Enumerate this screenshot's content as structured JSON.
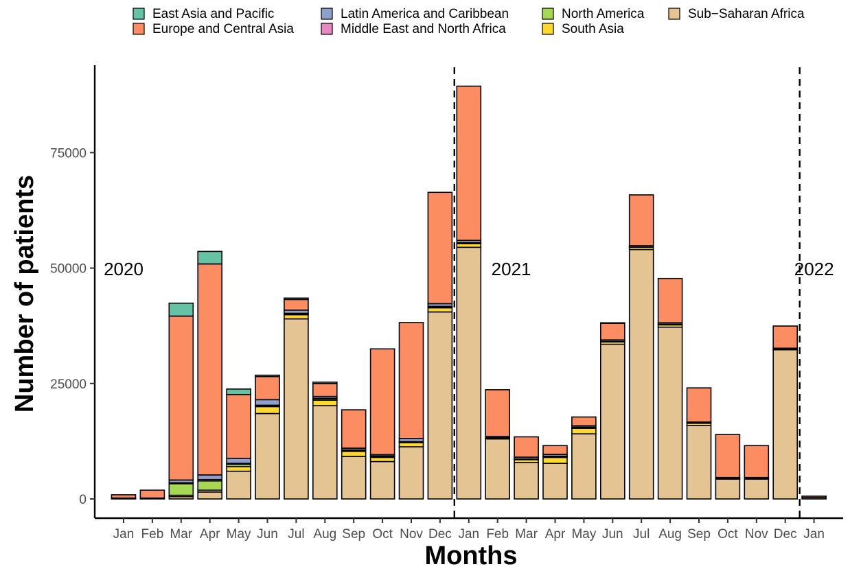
{
  "chart_data": {
    "type": "bar",
    "stacked": true,
    "xlabel": "Months",
    "ylabel": "Number of patients",
    "ylim": [
      0,
      92000
    ],
    "yticks": [
      0,
      25000,
      50000,
      75000
    ],
    "grid": false,
    "legend_position": "top",
    "categories": [
      "Jan",
      "Feb",
      "Mar",
      "Apr",
      "May",
      "Jun",
      "Jul",
      "Aug",
      "Sep",
      "Oct",
      "Nov",
      "Dec",
      "Jan",
      "Feb",
      "Mar",
      "Apr",
      "May",
      "Jun",
      "Jul",
      "Aug",
      "Sep",
      "Oct",
      "Nov",
      "Dec",
      "Jan"
    ],
    "year_markers": [
      {
        "label": "2020",
        "after_index": -1
      },
      {
        "label": "2021",
        "after_index": 11
      },
      {
        "label": "2022",
        "after_index": 23
      }
    ],
    "series": [
      {
        "name": "Sub−Saharan Africa",
        "color": "#e5c494",
        "values": [
          100,
          100,
          500,
          1500,
          6000,
          18500,
          39000,
          20200,
          9200,
          8100,
          11300,
          40500,
          54500,
          13000,
          7900,
          7700,
          14100,
          33500,
          54000,
          37200,
          15900,
          4300,
          4300,
          32300,
          300
        ]
      },
      {
        "name": "South Asia",
        "color": "#ffd92f",
        "values": [
          50,
          50,
          300,
          400,
          1000,
          1500,
          900,
          1200,
          1100,
          900,
          900,
          900,
          800,
          100,
          600,
          1300,
          1200,
          500,
          500,
          500,
          500,
          100,
          100,
          100,
          0
        ]
      },
      {
        "name": "North America",
        "color": "#a6d854",
        "values": [
          0,
          0,
          2500,
          2000,
          500,
          200,
          200,
          300,
          200,
          200,
          100,
          200,
          100,
          100,
          100,
          200,
          200,
          100,
          0,
          100,
          0,
          0,
          0,
          0,
          0
        ]
      },
      {
        "name": "Middle East and North Africa",
        "color": "#e78ac3",
        "values": [
          0,
          0,
          200,
          300,
          200,
          100,
          100,
          100,
          100,
          100,
          100,
          100,
          100,
          50,
          50,
          50,
          50,
          50,
          50,
          50,
          50,
          50,
          50,
          50,
          0
        ]
      },
      {
        "name": "Latin America and Caribbean",
        "color": "#8da0cb",
        "values": [
          50,
          50,
          600,
          1000,
          1100,
          1200,
          700,
          400,
          400,
          300,
          700,
          600,
          500,
          300,
          400,
          400,
          300,
          300,
          300,
          300,
          200,
          200,
          200,
          200,
          0
        ]
      },
      {
        "name": "Europe and Central Asia",
        "color": "#fc8d62",
        "values": [
          700,
          1700,
          35500,
          45700,
          13800,
          5000,
          2300,
          2800,
          8300,
          22900,
          25100,
          24100,
          33400,
          10100,
          4400,
          1900,
          1900,
          3600,
          11000,
          9600,
          7400,
          9300,
          6900,
          4800,
          300
        ]
      },
      {
        "name": "East Asia and Pacific",
        "color": "#66c2a5",
        "values": [
          0,
          0,
          2800,
          2700,
          1200,
          300,
          300,
          300,
          0,
          0,
          0,
          0,
          0,
          0,
          0,
          0,
          0,
          100,
          0,
          0,
          0,
          0,
          0,
          0,
          0
        ]
      }
    ],
    "legend_order": [
      "East Asia and Pacific",
      "Europe and Central Asia",
      "Latin America and Caribbean",
      "Middle East and North Africa",
      "North America",
      "South Asia",
      "Sub−Saharan Africa"
    ]
  }
}
